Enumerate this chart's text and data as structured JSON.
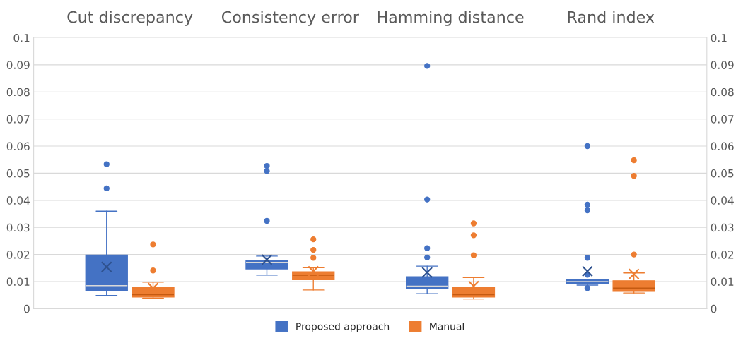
{
  "chart_data": {
    "type": "box",
    "categories": [
      "Cut discrepancy",
      "Consistency error",
      "Hamming distance",
      "Rand index"
    ],
    "series": [
      {
        "name": "Proposed approach",
        "color": "#4472c4",
        "boxes": [
          {
            "low": 0.0049,
            "q1": 0.0066,
            "median": 0.0085,
            "q3": 0.0198,
            "high": 0.036,
            "mean": 0.0154,
            "outliers": [
              0.0444,
              0.0533
            ]
          },
          {
            "low": 0.0124,
            "q1": 0.0147,
            "median": 0.0171,
            "q3": 0.0177,
            "high": 0.0194,
            "mean": 0.0181,
            "outliers": [
              0.0324,
              0.0508,
              0.0527
            ]
          },
          {
            "low": 0.0055,
            "q1": 0.0075,
            "median": 0.0083,
            "q3": 0.0118,
            "high": 0.0157,
            "mean": 0.0134,
            "outliers": [
              0.0189,
              0.0223,
              0.0403,
              0.0896
            ]
          },
          {
            "low": 0.0087,
            "q1": 0.0093,
            "median": 0.01,
            "q3": 0.0106,
            "high": 0.0106,
            "mean": 0.0138,
            "outliers": [
              0.0076,
              0.0125,
              0.0188,
              0.0363,
              0.0384,
              0.06
            ]
          }
        ]
      },
      {
        "name": "Manual",
        "color": "#ed7d31",
        "boxes": [
          {
            "low": 0.0039,
            "q1": 0.0043,
            "median": 0.0052,
            "q3": 0.0078,
            "high": 0.0098,
            "mean": 0.0076,
            "outliers": [
              0.0141,
              0.0237
            ]
          },
          {
            "low": 0.0069,
            "q1": 0.0107,
            "median": 0.0123,
            "q3": 0.0136,
            "high": 0.0151,
            "mean": 0.0138,
            "outliers": [
              0.0188,
              0.0217,
              0.0256
            ]
          },
          {
            "low": 0.0036,
            "q1": 0.0043,
            "median": 0.0052,
            "q3": 0.008,
            "high": 0.0115,
            "mean": 0.0083,
            "outliers": [
              0.0197,
              0.0271,
              0.0315
            ]
          },
          {
            "low": 0.0058,
            "q1": 0.0064,
            "median": 0.0076,
            "q3": 0.0103,
            "high": 0.0132,
            "mean": 0.0128,
            "outliers": [
              0.02,
              0.049,
              0.0548
            ]
          }
        ]
      }
    ],
    "ylim": [
      0,
      0.1
    ],
    "yticks": [
      0,
      0.01,
      0.02,
      0.03,
      0.04,
      0.05,
      0.06,
      0.07,
      0.08,
      0.09,
      0.1
    ],
    "y2lim": [
      0,
      0.1
    ],
    "y2ticks": [
      0,
      0.01,
      0.02,
      0.03,
      0.04,
      0.05,
      0.06,
      0.07,
      0.08,
      0.09,
      0.1
    ],
    "grid": "y",
    "legend": "bottom",
    "marker": "circle"
  }
}
